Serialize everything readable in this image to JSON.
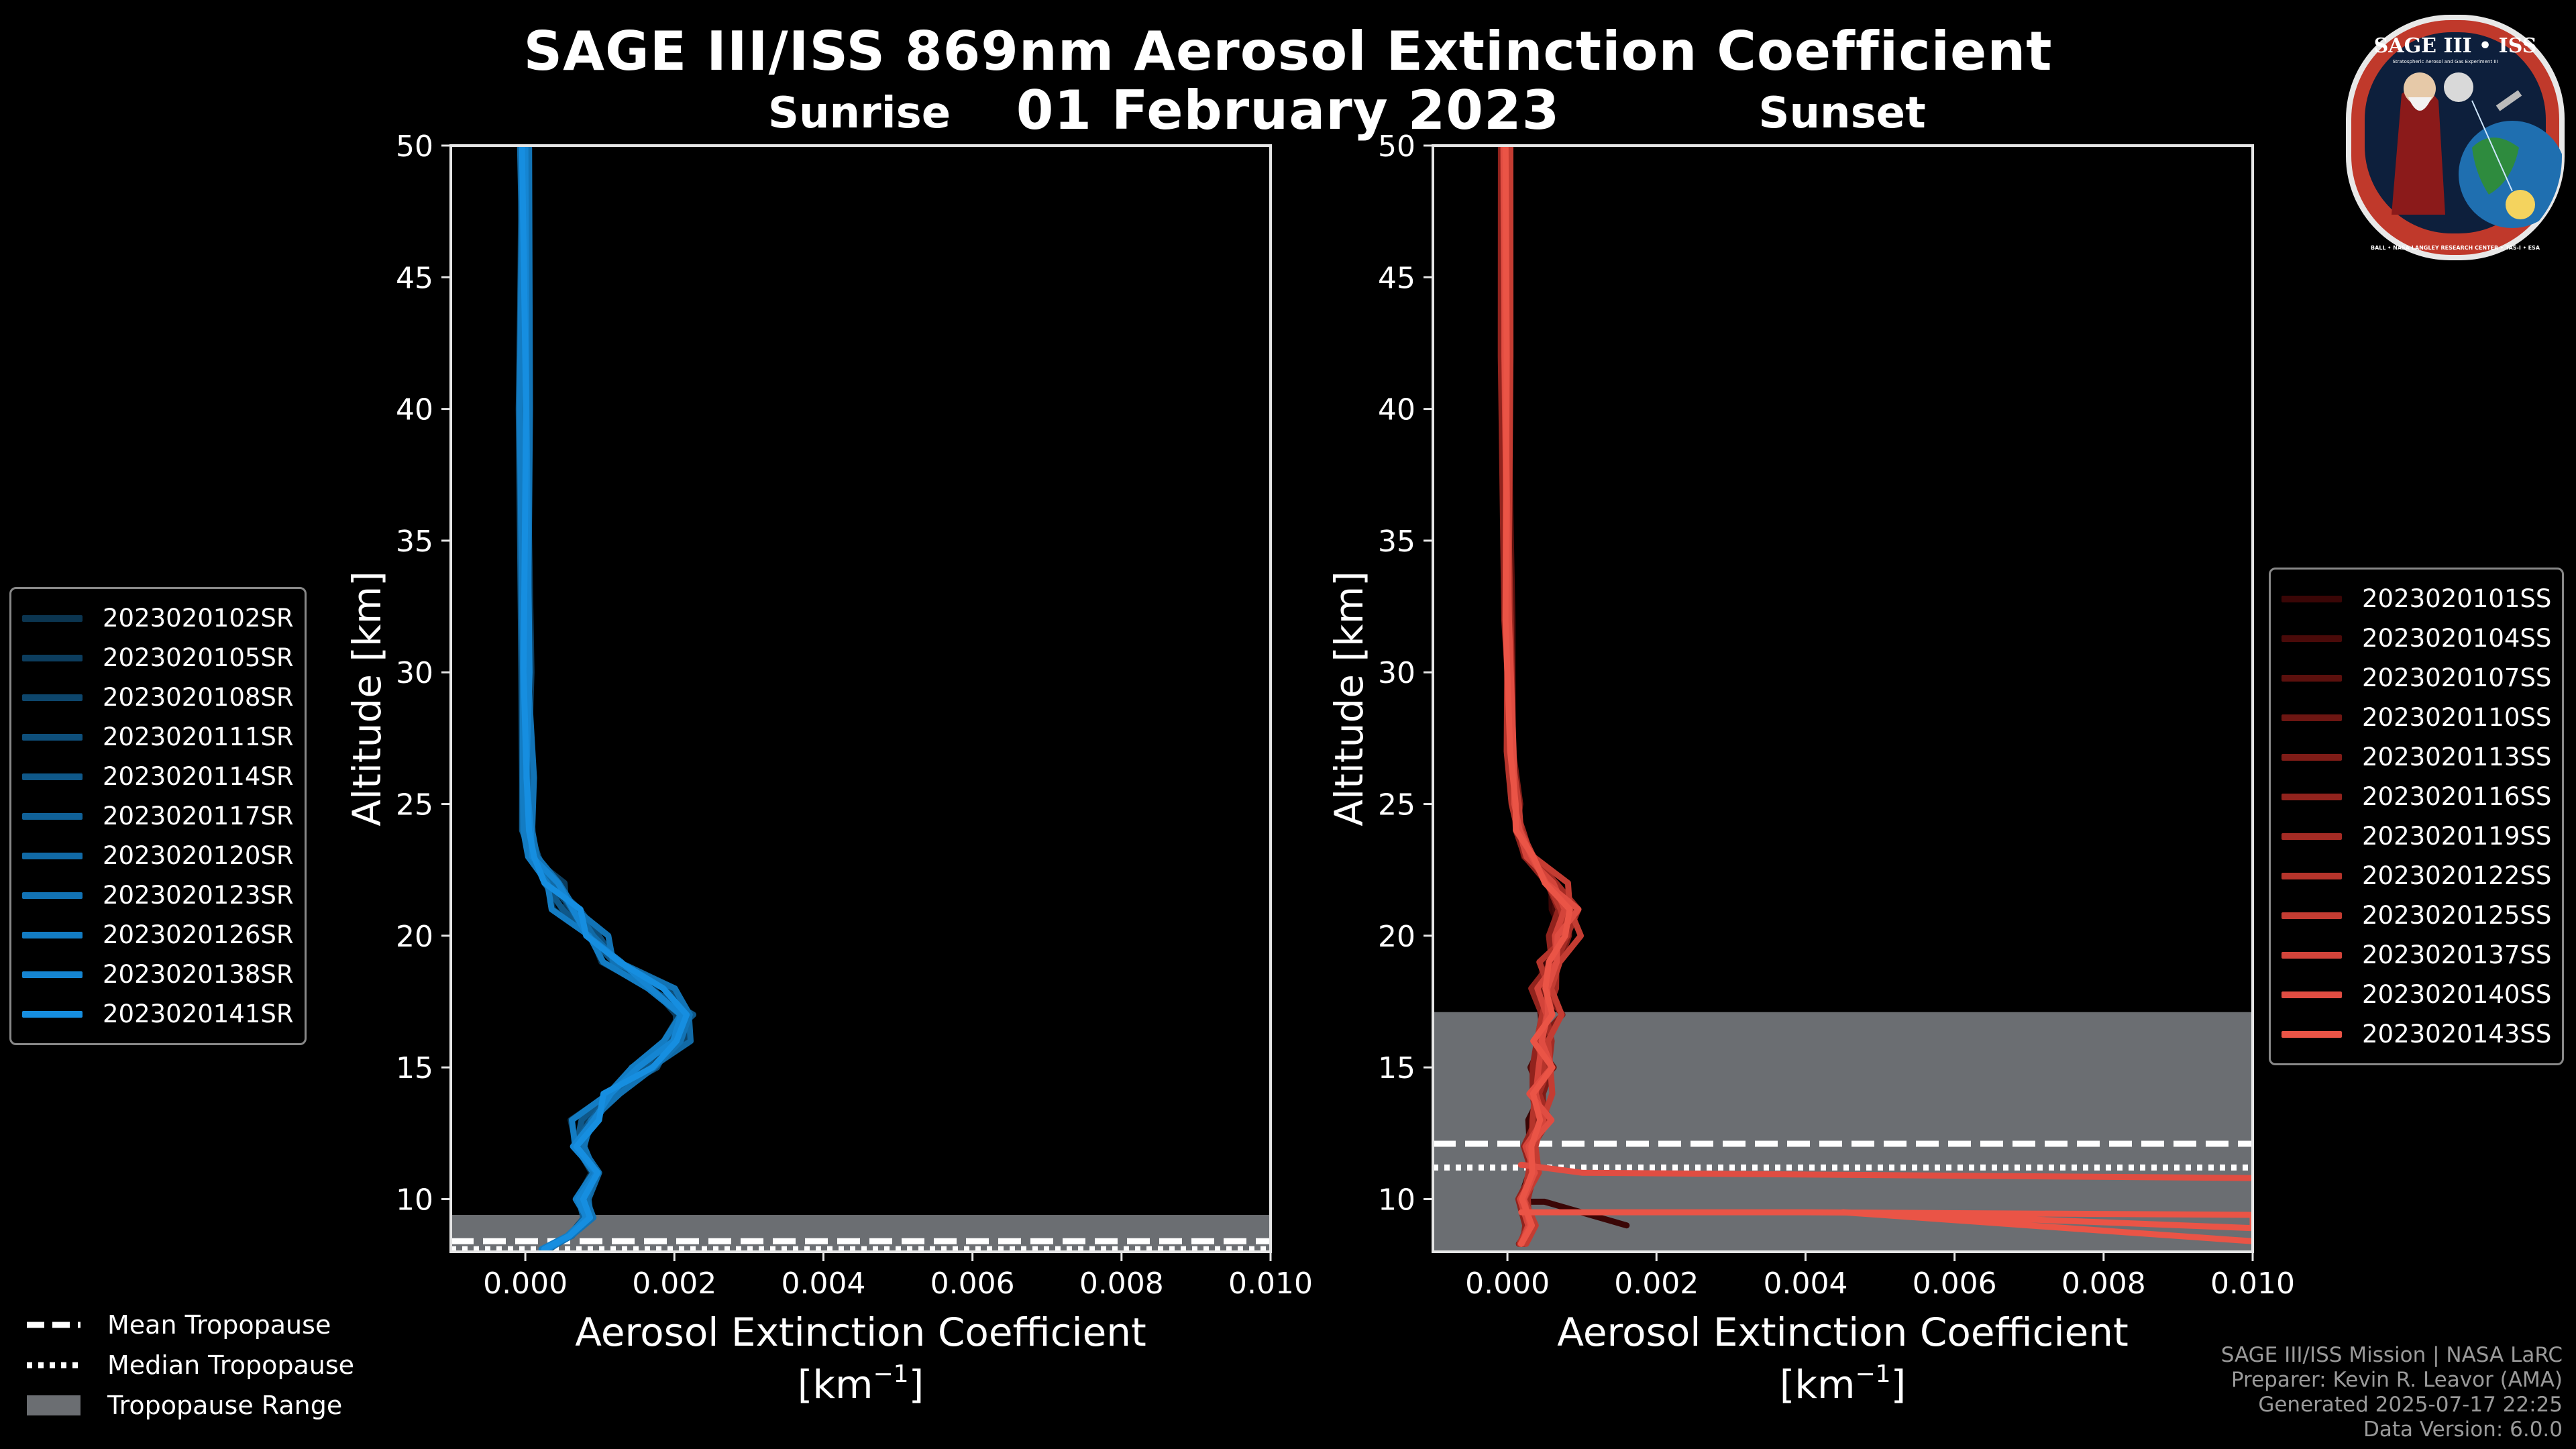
{
  "header": {
    "title_line1": "SAGE III/ISS 869nm Aerosol Extinction Coefficient",
    "title_line2": "01 February 2023"
  },
  "logo": {
    "title": "SAGE III • ISS",
    "small_text": "Stratospheric Aerosol and Gas Experiment III",
    "ring_text": "BALL • NASA LANGLEY RESEARCH CENTER • TAS-I • ESA"
  },
  "tropopause_legend": {
    "mean": "Mean Tropopause",
    "median": "Median Tropopause",
    "range": "Tropopause Range"
  },
  "footer": {
    "line1": "SAGE III/ISS Mission | NASA LaRC",
    "line2": "Preparer: Kevin R. Leavor (AMA)",
    "line3": "Generated 2025-07-17 22:25",
    "line4": "Data Version: 6.0.0"
  },
  "chart_data": [
    {
      "type": "line",
      "title": "Sunrise",
      "xlabel": "Aerosol Extinction Coefficient",
      "xunit_label": "[km",
      "xunit_exp": "−1",
      "xunit_close": "]",
      "ylabel": "Altitude [km]",
      "xlim": [
        -0.001,
        0.01
      ],
      "ylim": [
        8,
        50
      ],
      "xticks": [
        0.0,
        0.002,
        0.004,
        0.006,
        0.008,
        0.01
      ],
      "xtick_labels": [
        "0.000",
        "0.002",
        "0.004",
        "0.006",
        "0.008",
        "0.010"
      ],
      "yticks": [
        10,
        15,
        20,
        25,
        30,
        35,
        40,
        45,
        50
      ],
      "ytick_labels": [
        "10",
        "15",
        "20",
        "25",
        "30",
        "35",
        "40",
        "45",
        "50"
      ],
      "tropopause": {
        "mean": 8.4,
        "median": 8.1,
        "range": [
          8.0,
          9.4
        ]
      },
      "base_profile": [
        [
          0.00027,
          8.1
        ],
        [
          0.0006,
          8.6
        ],
        [
          0.00085,
          9.3
        ],
        [
          0.00075,
          10.0
        ],
        [
          0.00095,
          11.0
        ],
        [
          0.0007,
          12.0
        ],
        [
          0.00085,
          13.0
        ],
        [
          0.00115,
          14.0
        ],
        [
          0.0016,
          15.0
        ],
        [
          0.002,
          16.0
        ],
        [
          0.00215,
          17.0
        ],
        [
          0.0018,
          18.0
        ],
        [
          0.0012,
          19.0
        ],
        [
          0.0009,
          20.0
        ],
        [
          0.0006,
          21.0
        ],
        [
          0.00035,
          22.0
        ],
        [
          0.0001,
          23.0
        ],
        [
          4e-05,
          24.0
        ],
        [
          2e-05,
          26.0
        ],
        [
          0.0,
          30.0
        ],
        [
          -1e-05,
          40.0
        ],
        [
          -2e-05,
          50.0
        ]
      ],
      "series": [
        {
          "name": "2023020102SR",
          "color": "#0b3550",
          "dx": -0.00012,
          "amp": 1.0
        },
        {
          "name": "2023020105SR",
          "color": "#0c3d5e",
          "dx": 8e-05,
          "amp": 0.92
        },
        {
          "name": "2023020108SR",
          "color": "#0d466c",
          "dx": -5e-05,
          "amp": 1.06
        },
        {
          "name": "2023020111SR",
          "color": "#0e4f7b",
          "dx": 0.0001,
          "amp": 0.97
        },
        {
          "name": "2023020114SR",
          "color": "#0f5889",
          "dx": -9e-05,
          "amp": 1.03
        },
        {
          "name": "2023020117SR",
          "color": "#106198",
          "dx": 4e-05,
          "amp": 0.95
        },
        {
          "name": "2023020120SR",
          "color": "#116aa6",
          "dx": -2e-05,
          "amp": 1.08
        },
        {
          "name": "2023020123SR",
          "color": "#1273b5",
          "dx": 0.00012,
          "amp": 0.99
        },
        {
          "name": "2023020126SR",
          "color": "#137cc3",
          "dx": -0.00014,
          "amp": 1.01
        },
        {
          "name": "2023020138SR",
          "color": "#1585d2",
          "dx": 6e-05,
          "amp": 0.94
        },
        {
          "name": "2023020141SR",
          "color": "#168ee0",
          "dx": 0.0,
          "amp": 1.02
        }
      ]
    },
    {
      "type": "line",
      "title": "Sunset",
      "xlabel": "Aerosol Extinction Coefficient",
      "xunit_label": "[km",
      "xunit_exp": "−1",
      "xunit_close": "]",
      "ylabel": "Altitude [km]",
      "xlim": [
        -0.001,
        0.01
      ],
      "ylim": [
        8,
        50
      ],
      "xticks": [
        0.0,
        0.002,
        0.004,
        0.006,
        0.008,
        0.01
      ],
      "xtick_labels": [
        "0.000",
        "0.002",
        "0.004",
        "0.006",
        "0.008",
        "0.010"
      ],
      "yticks": [
        10,
        15,
        20,
        25,
        30,
        35,
        40,
        45,
        50
      ],
      "ytick_labels": [
        "10",
        "15",
        "20",
        "25",
        "30",
        "35",
        "40",
        "45",
        "50"
      ],
      "tropopause": {
        "mean": 12.1,
        "median": 11.2,
        "range": [
          8.0,
          17.1
        ]
      },
      "base_profile": [
        [
          0.0002,
          8.3
        ],
        [
          0.0003,
          9.0
        ],
        [
          0.0002,
          10.0
        ],
        [
          0.00035,
          11.0
        ],
        [
          0.0003,
          12.0
        ],
        [
          0.00045,
          13.0
        ],
        [
          0.0004,
          14.0
        ],
        [
          0.0005,
          15.0
        ],
        [
          0.00045,
          16.0
        ],
        [
          0.00055,
          17.0
        ],
        [
          0.0005,
          18.0
        ],
        [
          0.0006,
          19.0
        ],
        [
          0.00075,
          20.0
        ],
        [
          0.0008,
          21.0
        ],
        [
          0.0006,
          22.0
        ],
        [
          0.0003,
          23.0
        ],
        [
          0.00015,
          24.0
        ],
        [
          0.0001,
          25.0
        ],
        [
          5e-05,
          27.0
        ],
        [
          0.0,
          32.0
        ],
        [
          -2e-05,
          42.0
        ],
        [
          -3e-05,
          50.0
        ]
      ],
      "series": [
        {
          "name": "2023020101SS",
          "color": "#3a0606",
          "dx": 2e-05,
          "amp": 0.85,
          "extra": [
            [
              0.0005,
              9.9
            ],
            [
              0.0016,
              9.0
            ]
          ]
        },
        {
          "name": "2023020104SS",
          "color": "#4a0a09",
          "dx": -4e-05,
          "amp": 0.95
        },
        {
          "name": "2023020107SS",
          "color": "#5b100d",
          "dx": 5e-05,
          "amp": 0.9
        },
        {
          "name": "2023020110SS",
          "color": "#6d1612",
          "dx": -2e-05,
          "amp": 1.05
        },
        {
          "name": "2023020113SS",
          "color": "#7f1c17",
          "dx": 6e-05,
          "amp": 1.0
        },
        {
          "name": "2023020116SS",
          "color": "#91231d",
          "dx": -6e-05,
          "amp": 0.92
        },
        {
          "name": "2023020119SS",
          "color": "#a42b24",
          "dx": 3e-05,
          "amp": 1.08
        },
        {
          "name": "2023020122SS",
          "color": "#b5342b",
          "dx": -3e-05,
          "amp": 0.98
        },
        {
          "name": "2023020125SS",
          "color": "#c43c32",
          "dx": 7e-05,
          "amp": 1.1
        },
        {
          "name": "2023020137SS",
          "color": "#d3443a",
          "dx": -1e-05,
          "amp": 0.96
        },
        {
          "name": "2023020140SS",
          "color": "#e04d42",
          "dx": 1e-05,
          "amp": 1.02,
          "extra": [
            [
              0.0002,
              11.3
            ],
            [
              0.001,
              11.0
            ],
            [
              0.01,
              10.8
            ]
          ]
        },
        {
          "name": "2023020143SS",
          "color": "#ea5446",
          "dx": 0.0,
          "amp": 1.0,
          "extra": [
            [
              0.004,
              9.5
            ],
            [
              0.01,
              9.4
            ],
            [
              0.01,
              8.9
            ],
            [
              0.0045,
              9.5
            ],
            [
              0.01,
              8.4
            ]
          ]
        }
      ]
    }
  ]
}
